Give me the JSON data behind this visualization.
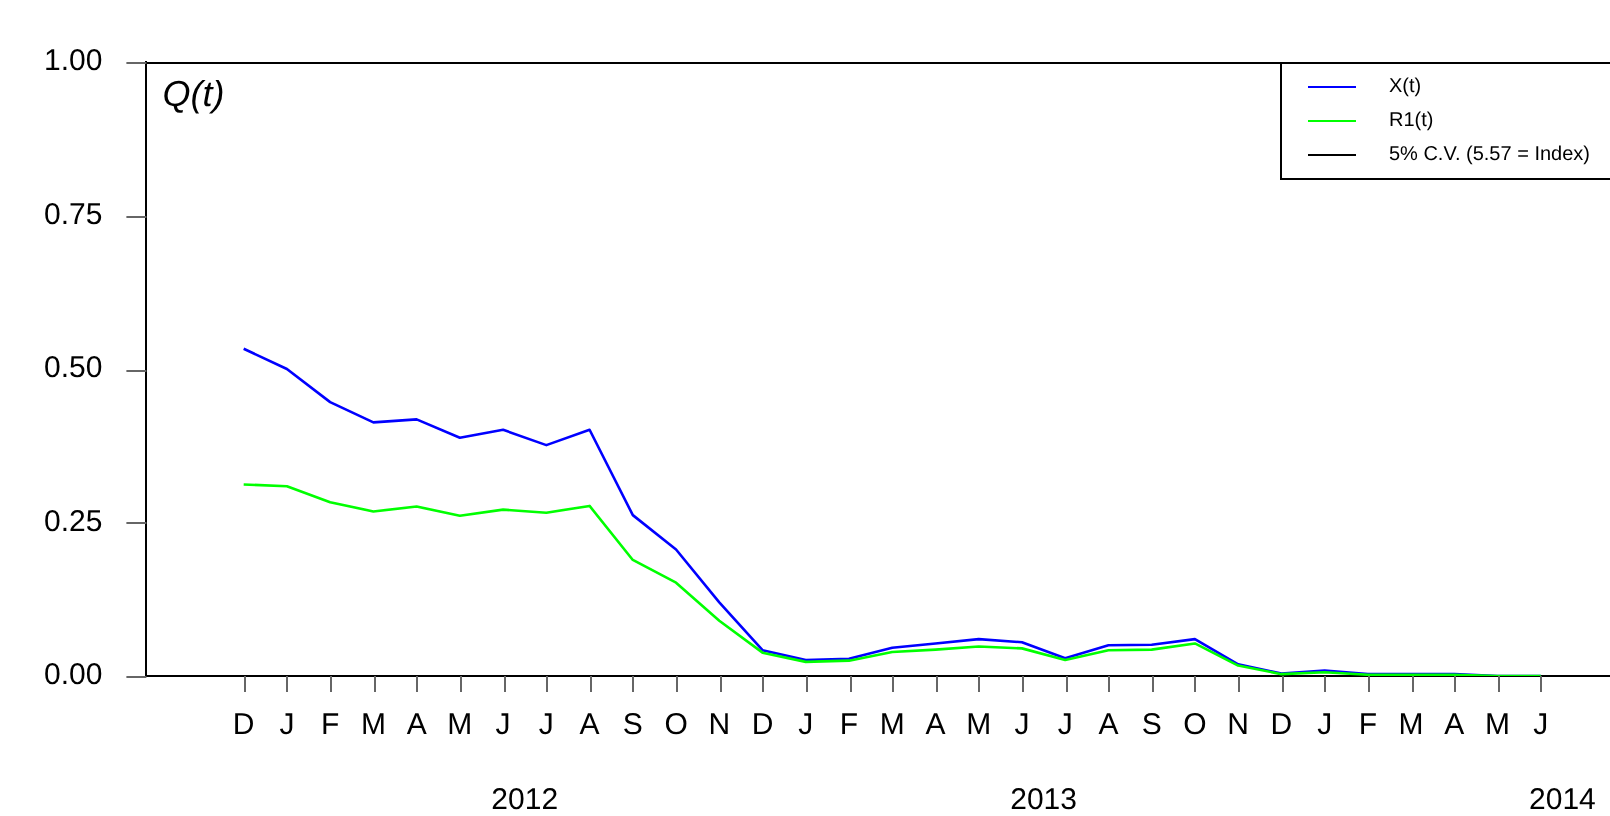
{
  "chart_data": {
    "type": "line",
    "ylabel": "Q(t)",
    "categories": [
      "D",
      "J",
      "F",
      "M",
      "A",
      "M",
      "J",
      "J",
      "A",
      "S",
      "O",
      "N",
      "D",
      "J",
      "F",
      "M",
      "A",
      "M",
      "J",
      "J",
      "A",
      "S",
      "O",
      "N",
      "D",
      "J",
      "F",
      "M",
      "A",
      "M",
      "J"
    ],
    "series": [
      {
        "name": "X(t)",
        "color": "#0000ff",
        "values": [
          0.533,
          0.5,
          0.446,
          0.413,
          0.418,
          0.388,
          0.401,
          0.376,
          0.401,
          0.262,
          0.206,
          0.12,
          0.042,
          0.026,
          0.028,
          0.046,
          0.053,
          0.06,
          0.055,
          0.029,
          0.05,
          0.051,
          0.06,
          0.019,
          0.004,
          0.009,
          0.003,
          0.003,
          0.003,
          0,
          0
        ]
      },
      {
        "name": "R1(t)",
        "color": "#00ff00",
        "values": [
          0.312,
          0.309,
          0.283,
          0.268,
          0.276,
          0.261,
          0.271,
          0.266,
          0.277,
          0.189,
          0.152,
          0.09,
          0.038,
          0.023,
          0.025,
          0.039,
          0.043,
          0.048,
          0.045,
          0.026,
          0.042,
          0.043,
          0.053,
          0.017,
          0.003,
          0.006,
          0.002,
          0.002,
          0.002,
          0,
          0
        ]
      },
      {
        "name": "5% C.V. (5.57 = Index)",
        "color": "#000000",
        "values": [
          null,
          null,
          null,
          null,
          null,
          null,
          null,
          null,
          null,
          null,
          null,
          null,
          null,
          null,
          null,
          null,
          null,
          null,
          null,
          null,
          null,
          null,
          null,
          null,
          null,
          null,
          null,
          null,
          null,
          null,
          null
        ]
      }
    ],
    "ylim": [
      0,
      1
    ],
    "yticks": [
      {
        "value": 0,
        "label": "0.00"
      },
      {
        "value": 0.25,
        "label": "0.25"
      },
      {
        "value": 0.5,
        "label": "0.50"
      },
      {
        "value": 0.75,
        "label": "0.75"
      },
      {
        "value": 1,
        "label": "1.00"
      }
    ],
    "annotations": [
      "2012",
      "2013",
      "2014"
    ],
    "legend": "top right",
    "marker": "none",
    "line_style": "solid"
  }
}
